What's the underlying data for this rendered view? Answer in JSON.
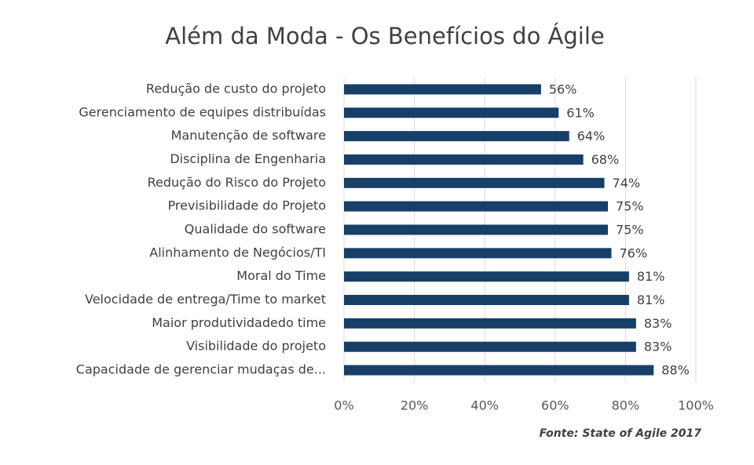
{
  "chart_data": {
    "type": "bar",
    "orientation": "horizontal",
    "title": "Além da Moda - Os Benefícios do Ágile",
    "source": "Fonte: State of Agile 2017",
    "categories": [
      "Redução de custo do projeto",
      "Gerenciamento de equipes distribuídas",
      "Manutenção de software",
      "Disciplina de Engenharia",
      "Redução do Risco do Projeto",
      "Previsibilidade do Projeto",
      "Qualidade do software",
      "Alinhamento de Negócios/TI",
      "Moral do Time",
      "Velocidade de entrega/Time to market",
      "Maior produtividadedo time",
      "Visibilidade do projeto",
      "Capacidade de gerenciar mudaças de..."
    ],
    "values": [
      56,
      61,
      64,
      68,
      74,
      75,
      75,
      76,
      81,
      81,
      83,
      83,
      88
    ],
    "value_labels": [
      "56%",
      "61%",
      "64%",
      "68%",
      "74%",
      "75%",
      "75%",
      "76%",
      "81%",
      "81%",
      "83%",
      "83%",
      "88%"
    ],
    "color": "#173f67",
    "xlim": [
      0,
      100
    ],
    "xticks": [
      {
        "value": 0,
        "label": "0%"
      },
      {
        "value": 20,
        "label": "20%"
      },
      {
        "value": 40,
        "label": "40%"
      },
      {
        "value": 60,
        "label": "60%"
      },
      {
        "value": 80,
        "label": "80%"
      },
      {
        "value": 100,
        "label": "100%"
      }
    ],
    "grid": true
  }
}
